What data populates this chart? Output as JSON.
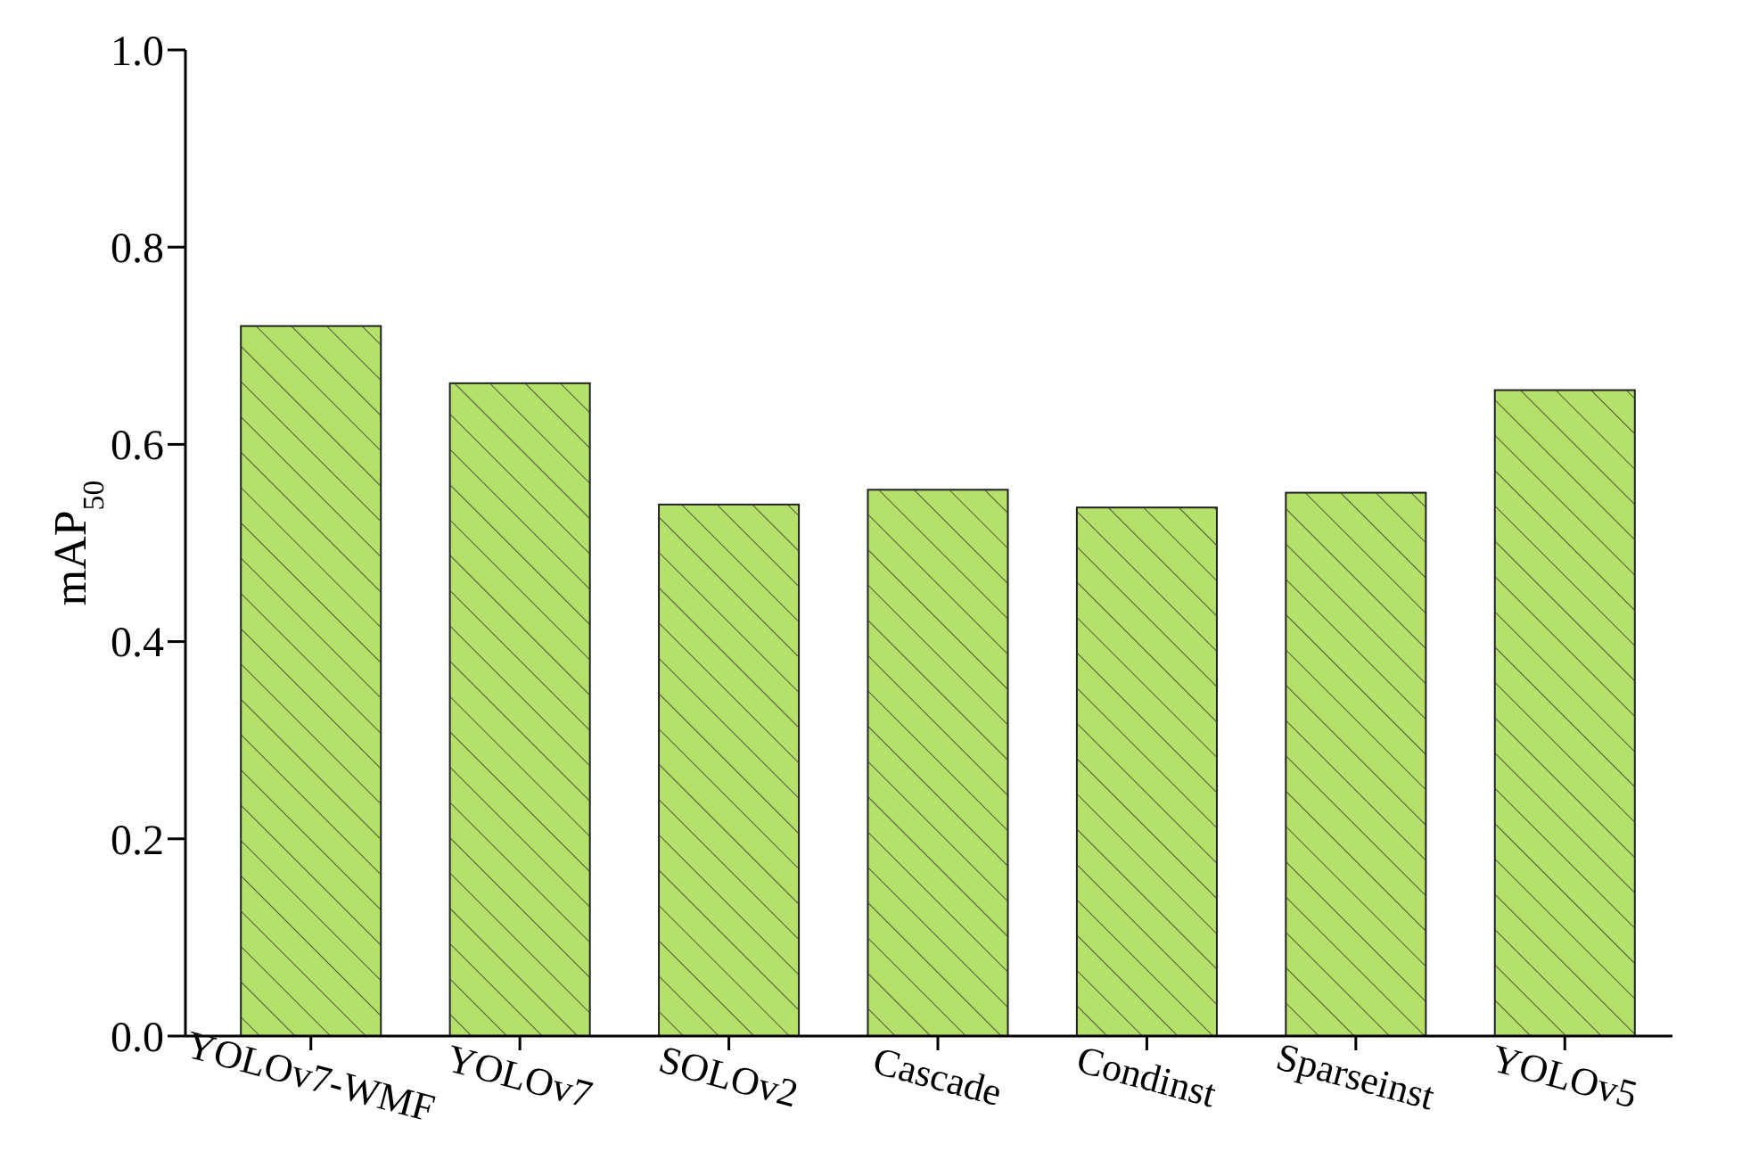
{
  "chart_data": {
    "type": "bar",
    "ylabel": "mAP$_{50}$",
    "categories": [
      "YOLOv7-WMF",
      "YOLOv7",
      "SOLOv2",
      "Cascade",
      "Condinst",
      "Sparseinst",
      "YOLOv5"
    ],
    "values": [
      0.72,
      0.662,
      0.539,
      0.554,
      0.536,
      0.551,
      0.655
    ],
    "color": "#b5e06a",
    "ylim": [
      0,
      1.0
    ],
    "yticks": [
      {
        "value": 0,
        "label": "0.0"
      },
      {
        "value": 0.2,
        "label": "0.2"
      },
      {
        "value": 0.4,
        "label": "0.4"
      },
      {
        "value": 0.6,
        "label": "0.6"
      },
      {
        "value": 0.8,
        "label": "0.8"
      },
      {
        "value": 1.0,
        "label": "1.0"
      }
    ],
    "grid": false
  }
}
